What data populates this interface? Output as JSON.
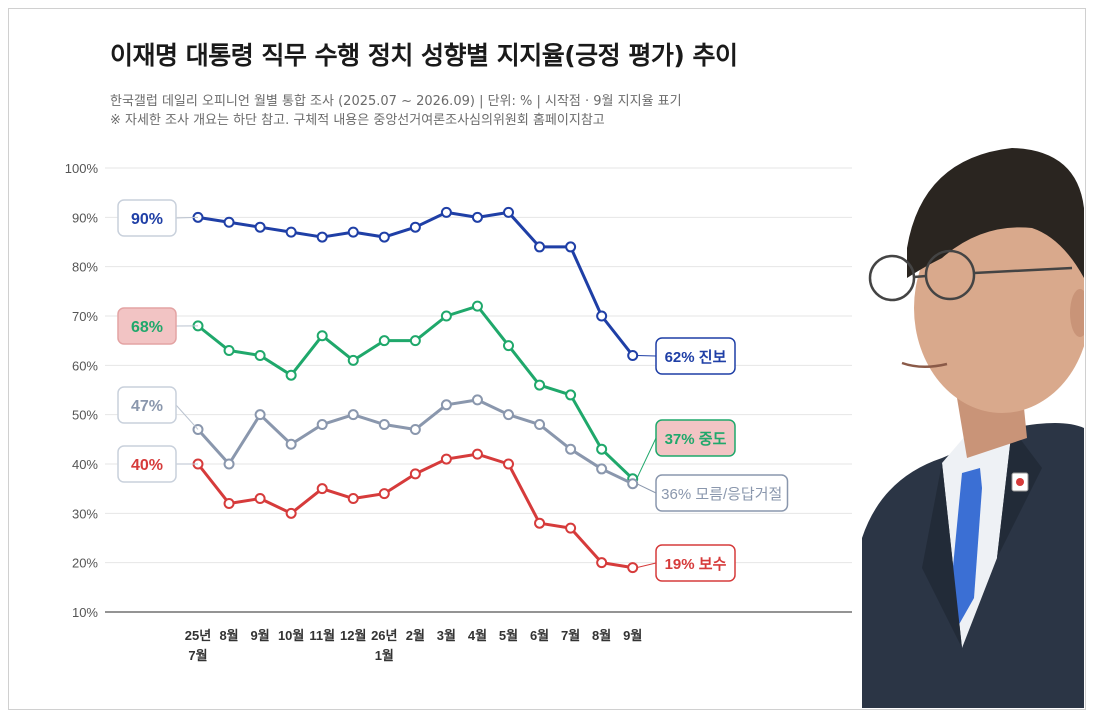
{
  "header": {
    "title": "이재명 대통령 직무 수행 정치 성향별 지지율(긍정 평가) 추이",
    "subtitle": "한국갤럽 데일리 오피니언 월별 통합 조사 (2025.07 ~ 2026.09) | 단위: % | 시작점 · 9월 지지율 표기",
    "note": "※ 자세한 조사 개요는 하단 참고. 구체적 내용은 중앙선거여론조사심의위원회 홈페이지참고"
  },
  "chart_data": {
    "type": "line",
    "title": "이재명 대통령 직무 수행 정치 성향별 지지율(긍정 평가) 추이",
    "ylim": [
      10,
      100
    ],
    "yticks": [
      "10%",
      "20%",
      "30%",
      "40%",
      "50%",
      "60%",
      "70%",
      "80%",
      "90%",
      "100%"
    ],
    "grid": true,
    "categories": [
      [
        "25년",
        "7월"
      ],
      [
        "8월"
      ],
      [
        "9월"
      ],
      [
        "10월"
      ],
      [
        "11월"
      ],
      [
        "12월"
      ],
      [
        "26년",
        "1월"
      ],
      [
        "2월"
      ],
      [
        "3월"
      ],
      [
        "4월"
      ],
      [
        "5월"
      ],
      [
        "6월"
      ],
      [
        "7월"
      ],
      [
        "8월"
      ],
      [
        "9월"
      ]
    ],
    "series": [
      {
        "name": "진보",
        "color": "#1f3fa6",
        "values": [
          90,
          89,
          88,
          87,
          86,
          87,
          86,
          88,
          91,
          90,
          91,
          84,
          84,
          70,
          62
        ],
        "start_label": "90%",
        "end_label": "62% 진보",
        "end_style": "outline"
      },
      {
        "name": "중도",
        "color": "#1fa86b",
        "values": [
          68,
          63,
          62,
          58,
          66,
          61,
          65,
          65,
          70,
          72,
          64,
          56,
          54,
          43,
          37
        ],
        "start_label": "68%",
        "end_label": "37% 중도",
        "end_style": "filled"
      },
      {
        "name": "모름/응답거절",
        "color": "#8a97ad",
        "values": [
          47,
          40,
          50,
          44,
          48,
          50,
          48,
          47,
          52,
          53,
          50,
          48,
          43,
          39,
          36
        ],
        "start_label": "47%",
        "end_label": "36% 모름/응답거절",
        "end_style": "outline"
      },
      {
        "name": "보수",
        "color": "#d63b3b",
        "values": [
          40,
          32,
          33,
          30,
          35,
          33,
          34,
          38,
          41,
          42,
          40,
          28,
          27,
          20,
          19
        ],
        "start_label": "40%",
        "end_label": "19% 보수",
        "end_style": "outline"
      }
    ]
  },
  "photo": {
    "alt": "portrait-of-man-in-suit",
    "colors": {
      "suit": "#2b3545",
      "tie": "#3b6fd4",
      "shirt": "#eef1f5",
      "hair": "#2a2520",
      "skin": "#d9a98c"
    }
  }
}
